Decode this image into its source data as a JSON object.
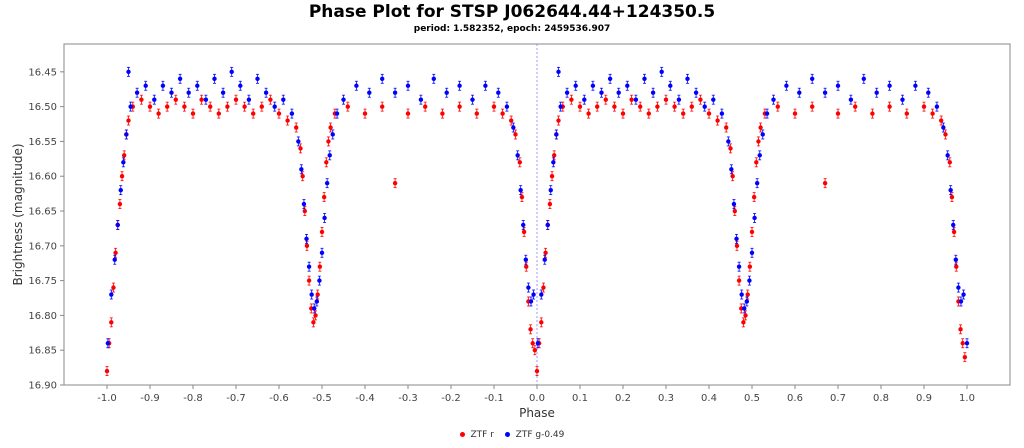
{
  "chart_data": {
    "type": "scatter",
    "title": "Phase Plot for STSP J062644.44+124350.5",
    "subtitle": "period: 1.582352, epoch: 2459536.907",
    "xlabel": "Phase",
    "ylabel": "Brightness (magnitude)",
    "xlim": [
      -1.1,
      1.1
    ],
    "ylim": [
      16.9,
      16.41
    ],
    "y_inverted": true,
    "grid": false,
    "legend_position": "bottom-center",
    "x_ticks": [
      -1.0,
      -0.9,
      -0.8,
      -0.7,
      -0.6,
      -0.5,
      -0.4,
      -0.3,
      -0.2,
      -0.1,
      0.0,
      0.1,
      0.2,
      0.3,
      0.4,
      0.5,
      0.6,
      0.7,
      0.8,
      0.9,
      1.0
    ],
    "x_tick_labels": [
      "-1.0",
      "-0.9",
      "-0.8",
      "-0.7",
      "-0.6",
      "-0.5",
      "-0.4",
      "-0.3",
      "-0.2",
      "-0.1",
      "0.0",
      "0.1",
      "0.2",
      "0.3",
      "0.4",
      "0.5",
      "0.6",
      "0.7",
      "0.8",
      "0.9",
      "1.0"
    ],
    "y_ticks": [
      16.45,
      16.5,
      16.55,
      16.6,
      16.65,
      16.7,
      16.75,
      16.8,
      16.85,
      16.9
    ],
    "y_tick_labels": [
      "16.45",
      "16.50",
      "16.55",
      "16.60",
      "16.65",
      "16.70",
      "16.75",
      "16.80",
      "16.85",
      "16.90"
    ],
    "reference_line_x": 0.0,
    "series": [
      {
        "name": "ZTF r",
        "color": "#ff0000",
        "points": [
          [
            -1.0,
            16.88
          ],
          [
            -0.995,
            16.84
          ],
          [
            -0.99,
            16.81
          ],
          [
            -0.985,
            16.76
          ],
          [
            -0.98,
            16.71
          ],
          [
            -0.975,
            16.67
          ],
          [
            -0.97,
            16.64
          ],
          [
            -0.965,
            16.6
          ],
          [
            -0.96,
            16.57
          ],
          [
            -0.955,
            16.54
          ],
          [
            -0.95,
            16.52
          ],
          [
            -0.94,
            16.5
          ],
          [
            -0.92,
            16.49
          ],
          [
            -0.9,
            16.5
          ],
          [
            -0.88,
            16.51
          ],
          [
            -0.86,
            16.5
          ],
          [
            -0.84,
            16.49
          ],
          [
            -0.82,
            16.5
          ],
          [
            -0.8,
            16.51
          ],
          [
            -0.78,
            16.49
          ],
          [
            -0.76,
            16.5
          ],
          [
            -0.74,
            16.51
          ],
          [
            -0.72,
            16.5
          ],
          [
            -0.7,
            16.49
          ],
          [
            -0.68,
            16.5
          ],
          [
            -0.66,
            16.51
          ],
          [
            -0.64,
            16.5
          ],
          [
            -0.62,
            16.49
          ],
          [
            -0.6,
            16.51
          ],
          [
            -0.58,
            16.52
          ],
          [
            -0.56,
            16.53
          ],
          [
            -0.55,
            16.56
          ],
          [
            -0.545,
            16.6
          ],
          [
            -0.54,
            16.65
          ],
          [
            -0.535,
            16.7
          ],
          [
            -0.53,
            16.75
          ],
          [
            -0.525,
            16.79
          ],
          [
            -0.52,
            16.81
          ],
          [
            -0.515,
            16.8
          ],
          [
            -0.51,
            16.77
          ],
          [
            -0.505,
            16.73
          ],
          [
            -0.5,
            16.68
          ],
          [
            -0.495,
            16.63
          ],
          [
            -0.49,
            16.58
          ],
          [
            -0.485,
            16.55
          ],
          [
            -0.48,
            16.53
          ],
          [
            -0.47,
            16.51
          ],
          [
            -0.44,
            16.5
          ],
          [
            -0.4,
            16.51
          ],
          [
            -0.36,
            16.5
          ],
          [
            -0.33,
            16.61
          ],
          [
            -0.3,
            16.51
          ],
          [
            -0.26,
            16.5
          ],
          [
            -0.22,
            16.51
          ],
          [
            -0.18,
            16.5
          ],
          [
            -0.14,
            16.51
          ],
          [
            -0.1,
            16.5
          ],
          [
            -0.08,
            16.51
          ],
          [
            -0.06,
            16.52
          ],
          [
            -0.05,
            16.54
          ],
          [
            -0.04,
            16.58
          ],
          [
            -0.035,
            16.63
          ],
          [
            -0.03,
            16.68
          ],
          [
            -0.025,
            16.73
          ],
          [
            -0.02,
            16.78
          ],
          [
            -0.015,
            16.82
          ],
          [
            -0.01,
            16.84
          ],
          [
            -0.005,
            16.85
          ],
          [
            0.0,
            16.88
          ],
          [
            0.005,
            16.84
          ],
          [
            0.01,
            16.81
          ],
          [
            0.015,
            16.76
          ],
          [
            0.02,
            16.71
          ],
          [
            0.025,
            16.67
          ],
          [
            0.03,
            16.64
          ],
          [
            0.035,
            16.6
          ],
          [
            0.04,
            16.57
          ],
          [
            0.045,
            16.54
          ],
          [
            0.05,
            16.52
          ],
          [
            0.06,
            16.5
          ],
          [
            0.08,
            16.49
          ],
          [
            0.1,
            16.5
          ],
          [
            0.12,
            16.51
          ],
          [
            0.14,
            16.5
          ],
          [
            0.16,
            16.49
          ],
          [
            0.18,
            16.5
          ],
          [
            0.2,
            16.51
          ],
          [
            0.22,
            16.49
          ],
          [
            0.24,
            16.5
          ],
          [
            0.26,
            16.51
          ],
          [
            0.28,
            16.5
          ],
          [
            0.3,
            16.49
          ],
          [
            0.32,
            16.5
          ],
          [
            0.34,
            16.51
          ],
          [
            0.36,
            16.5
          ],
          [
            0.38,
            16.49
          ],
          [
            0.4,
            16.51
          ],
          [
            0.42,
            16.52
          ],
          [
            0.44,
            16.53
          ],
          [
            0.45,
            16.56
          ],
          [
            0.455,
            16.6
          ],
          [
            0.46,
            16.65
          ],
          [
            0.465,
            16.7
          ],
          [
            0.47,
            16.75
          ],
          [
            0.475,
            16.79
          ],
          [
            0.48,
            16.81
          ],
          [
            0.485,
            16.8
          ],
          [
            0.49,
            16.77
          ],
          [
            0.495,
            16.73
          ],
          [
            0.5,
            16.68
          ],
          [
            0.505,
            16.63
          ],
          [
            0.51,
            16.58
          ],
          [
            0.515,
            16.55
          ],
          [
            0.52,
            16.53
          ],
          [
            0.53,
            16.51
          ],
          [
            0.56,
            16.5
          ],
          [
            0.6,
            16.51
          ],
          [
            0.64,
            16.5
          ],
          [
            0.67,
            16.61
          ],
          [
            0.7,
            16.51
          ],
          [
            0.74,
            16.5
          ],
          [
            0.78,
            16.51
          ],
          [
            0.82,
            16.5
          ],
          [
            0.86,
            16.51
          ],
          [
            0.9,
            16.5
          ],
          [
            0.92,
            16.51
          ],
          [
            0.94,
            16.52
          ],
          [
            0.95,
            16.54
          ],
          [
            0.96,
            16.58
          ],
          [
            0.965,
            16.63
          ],
          [
            0.97,
            16.68
          ],
          [
            0.975,
            16.73
          ],
          [
            0.98,
            16.78
          ],
          [
            0.985,
            16.82
          ],
          [
            0.99,
            16.84
          ],
          [
            0.995,
            16.86
          ]
        ]
      },
      {
        "name": "ZTF g-0.49",
        "color": "#0000ff",
        "points": [
          [
            -0.998,
            16.84
          ],
          [
            -0.99,
            16.77
          ],
          [
            -0.982,
            16.72
          ],
          [
            -0.975,
            16.67
          ],
          [
            -0.968,
            16.62
          ],
          [
            -0.962,
            16.58
          ],
          [
            -0.955,
            16.54
          ],
          [
            -0.95,
            16.45
          ],
          [
            -0.945,
            16.5
          ],
          [
            -0.93,
            16.48
          ],
          [
            -0.91,
            16.47
          ],
          [
            -0.89,
            16.49
          ],
          [
            -0.87,
            16.47
          ],
          [
            -0.85,
            16.48
          ],
          [
            -0.83,
            16.46
          ],
          [
            -0.81,
            16.48
          ],
          [
            -0.79,
            16.47
          ],
          [
            -0.77,
            16.49
          ],
          [
            -0.75,
            16.46
          ],
          [
            -0.73,
            16.48
          ],
          [
            -0.71,
            16.45
          ],
          [
            -0.69,
            16.47
          ],
          [
            -0.67,
            16.49
          ],
          [
            -0.65,
            16.46
          ],
          [
            -0.63,
            16.48
          ],
          [
            -0.61,
            16.5
          ],
          [
            -0.59,
            16.49
          ],
          [
            -0.57,
            16.51
          ],
          [
            -0.555,
            16.55
          ],
          [
            -0.548,
            16.59
          ],
          [
            -0.542,
            16.64
          ],
          [
            -0.536,
            16.69
          ],
          [
            -0.53,
            16.73
          ],
          [
            -0.524,
            16.77
          ],
          [
            -0.518,
            16.79
          ],
          [
            -0.512,
            16.78
          ],
          [
            -0.506,
            16.75
          ],
          [
            -0.5,
            16.71
          ],
          [
            -0.494,
            16.66
          ],
          [
            -0.488,
            16.61
          ],
          [
            -0.482,
            16.57
          ],
          [
            -0.475,
            16.54
          ],
          [
            -0.465,
            16.51
          ],
          [
            -0.45,
            16.49
          ],
          [
            -0.42,
            16.47
          ],
          [
            -0.39,
            16.48
          ],
          [
            -0.36,
            16.46
          ],
          [
            -0.33,
            16.48
          ],
          [
            -0.3,
            16.47
          ],
          [
            -0.27,
            16.49
          ],
          [
            -0.24,
            16.46
          ],
          [
            -0.21,
            16.48
          ],
          [
            -0.18,
            16.47
          ],
          [
            -0.15,
            16.49
          ],
          [
            -0.12,
            16.47
          ],
          [
            -0.09,
            16.48
          ],
          [
            -0.07,
            16.5
          ],
          [
            -0.055,
            16.53
          ],
          [
            -0.045,
            16.57
          ],
          [
            -0.038,
            16.62
          ],
          [
            -0.032,
            16.67
          ],
          [
            -0.026,
            16.72
          ],
          [
            -0.02,
            16.76
          ],
          [
            -0.014,
            16.78
          ],
          [
            -0.008,
            16.77
          ],
          [
            0.002,
            16.84
          ],
          [
            0.01,
            16.77
          ],
          [
            0.018,
            16.72
          ],
          [
            0.025,
            16.67
          ],
          [
            0.032,
            16.62
          ],
          [
            0.038,
            16.58
          ],
          [
            0.045,
            16.54
          ],
          [
            0.05,
            16.45
          ],
          [
            0.055,
            16.5
          ],
          [
            0.07,
            16.48
          ],
          [
            0.09,
            16.47
          ],
          [
            0.11,
            16.49
          ],
          [
            0.13,
            16.47
          ],
          [
            0.15,
            16.48
          ],
          [
            0.17,
            16.46
          ],
          [
            0.19,
            16.48
          ],
          [
            0.21,
            16.47
          ],
          [
            0.23,
            16.49
          ],
          [
            0.25,
            16.46
          ],
          [
            0.27,
            16.48
          ],
          [
            0.29,
            16.45
          ],
          [
            0.31,
            16.47
          ],
          [
            0.33,
            16.49
          ],
          [
            0.35,
            16.46
          ],
          [
            0.37,
            16.48
          ],
          [
            0.39,
            16.5
          ],
          [
            0.41,
            16.49
          ],
          [
            0.43,
            16.51
          ],
          [
            0.445,
            16.55
          ],
          [
            0.452,
            16.59
          ],
          [
            0.458,
            16.64
          ],
          [
            0.464,
            16.69
          ],
          [
            0.47,
            16.73
          ],
          [
            0.476,
            16.77
          ],
          [
            0.482,
            16.79
          ],
          [
            0.488,
            16.78
          ],
          [
            0.494,
            16.75
          ],
          [
            0.5,
            16.71
          ],
          [
            0.506,
            16.66
          ],
          [
            0.512,
            16.61
          ],
          [
            0.518,
            16.57
          ],
          [
            0.525,
            16.54
          ],
          [
            0.535,
            16.51
          ],
          [
            0.55,
            16.49
          ],
          [
            0.58,
            16.47
          ],
          [
            0.61,
            16.48
          ],
          [
            0.64,
            16.46
          ],
          [
            0.67,
            16.48
          ],
          [
            0.7,
            16.47
          ],
          [
            0.73,
            16.49
          ],
          [
            0.76,
            16.46
          ],
          [
            0.79,
            16.48
          ],
          [
            0.82,
            16.47
          ],
          [
            0.85,
            16.49
          ],
          [
            0.88,
            16.47
          ],
          [
            0.91,
            16.48
          ],
          [
            0.93,
            16.5
          ],
          [
            0.945,
            16.53
          ],
          [
            0.955,
            16.57
          ],
          [
            0.962,
            16.62
          ],
          [
            0.968,
            16.67
          ],
          [
            0.974,
            16.72
          ],
          [
            0.98,
            16.76
          ],
          [
            0.986,
            16.78
          ],
          [
            0.992,
            16.77
          ],
          [
            1.0,
            16.84
          ]
        ]
      }
    ]
  }
}
